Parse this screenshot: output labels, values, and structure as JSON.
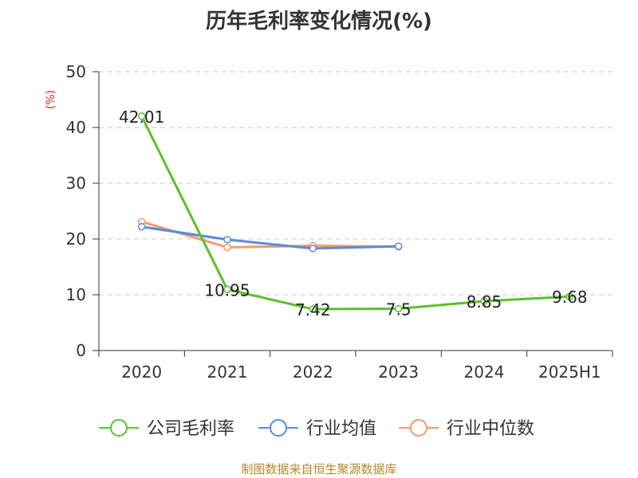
{
  "source_note": "制图数据来自恒生聚源数据库",
  "chart_data": {
    "type": "line",
    "title": "历年毛利率变化情况(%)",
    "ylabel": "(%)",
    "xlabel": "",
    "categories": [
      "2020",
      "2021",
      "2022",
      "2023",
      "2024",
      "2025H1"
    ],
    "ylim": [
      0,
      50
    ],
    "yticks": [
      0,
      10,
      20,
      30,
      40,
      50
    ],
    "grid": "horizontal dashed",
    "legend_position": "bottom",
    "series": [
      {
        "name": "公司毛利率",
        "color": "#5cc02b",
        "values": [
          42.01,
          10.95,
          7.42,
          7.5,
          8.85,
          9.68
        ],
        "labels": [
          "42.01",
          "10.95",
          "7.42",
          "7.5",
          "8.85",
          "9.68"
        ]
      },
      {
        "name": "行业均值",
        "color": "#5b8bd9",
        "values": [
          22.2,
          19.9,
          18.3,
          18.7,
          null,
          null
        ]
      },
      {
        "name": "行业中位数",
        "color": "#f39a6b",
        "values": [
          23.1,
          18.5,
          18.8,
          18.6,
          null,
          null
        ]
      }
    ]
  }
}
